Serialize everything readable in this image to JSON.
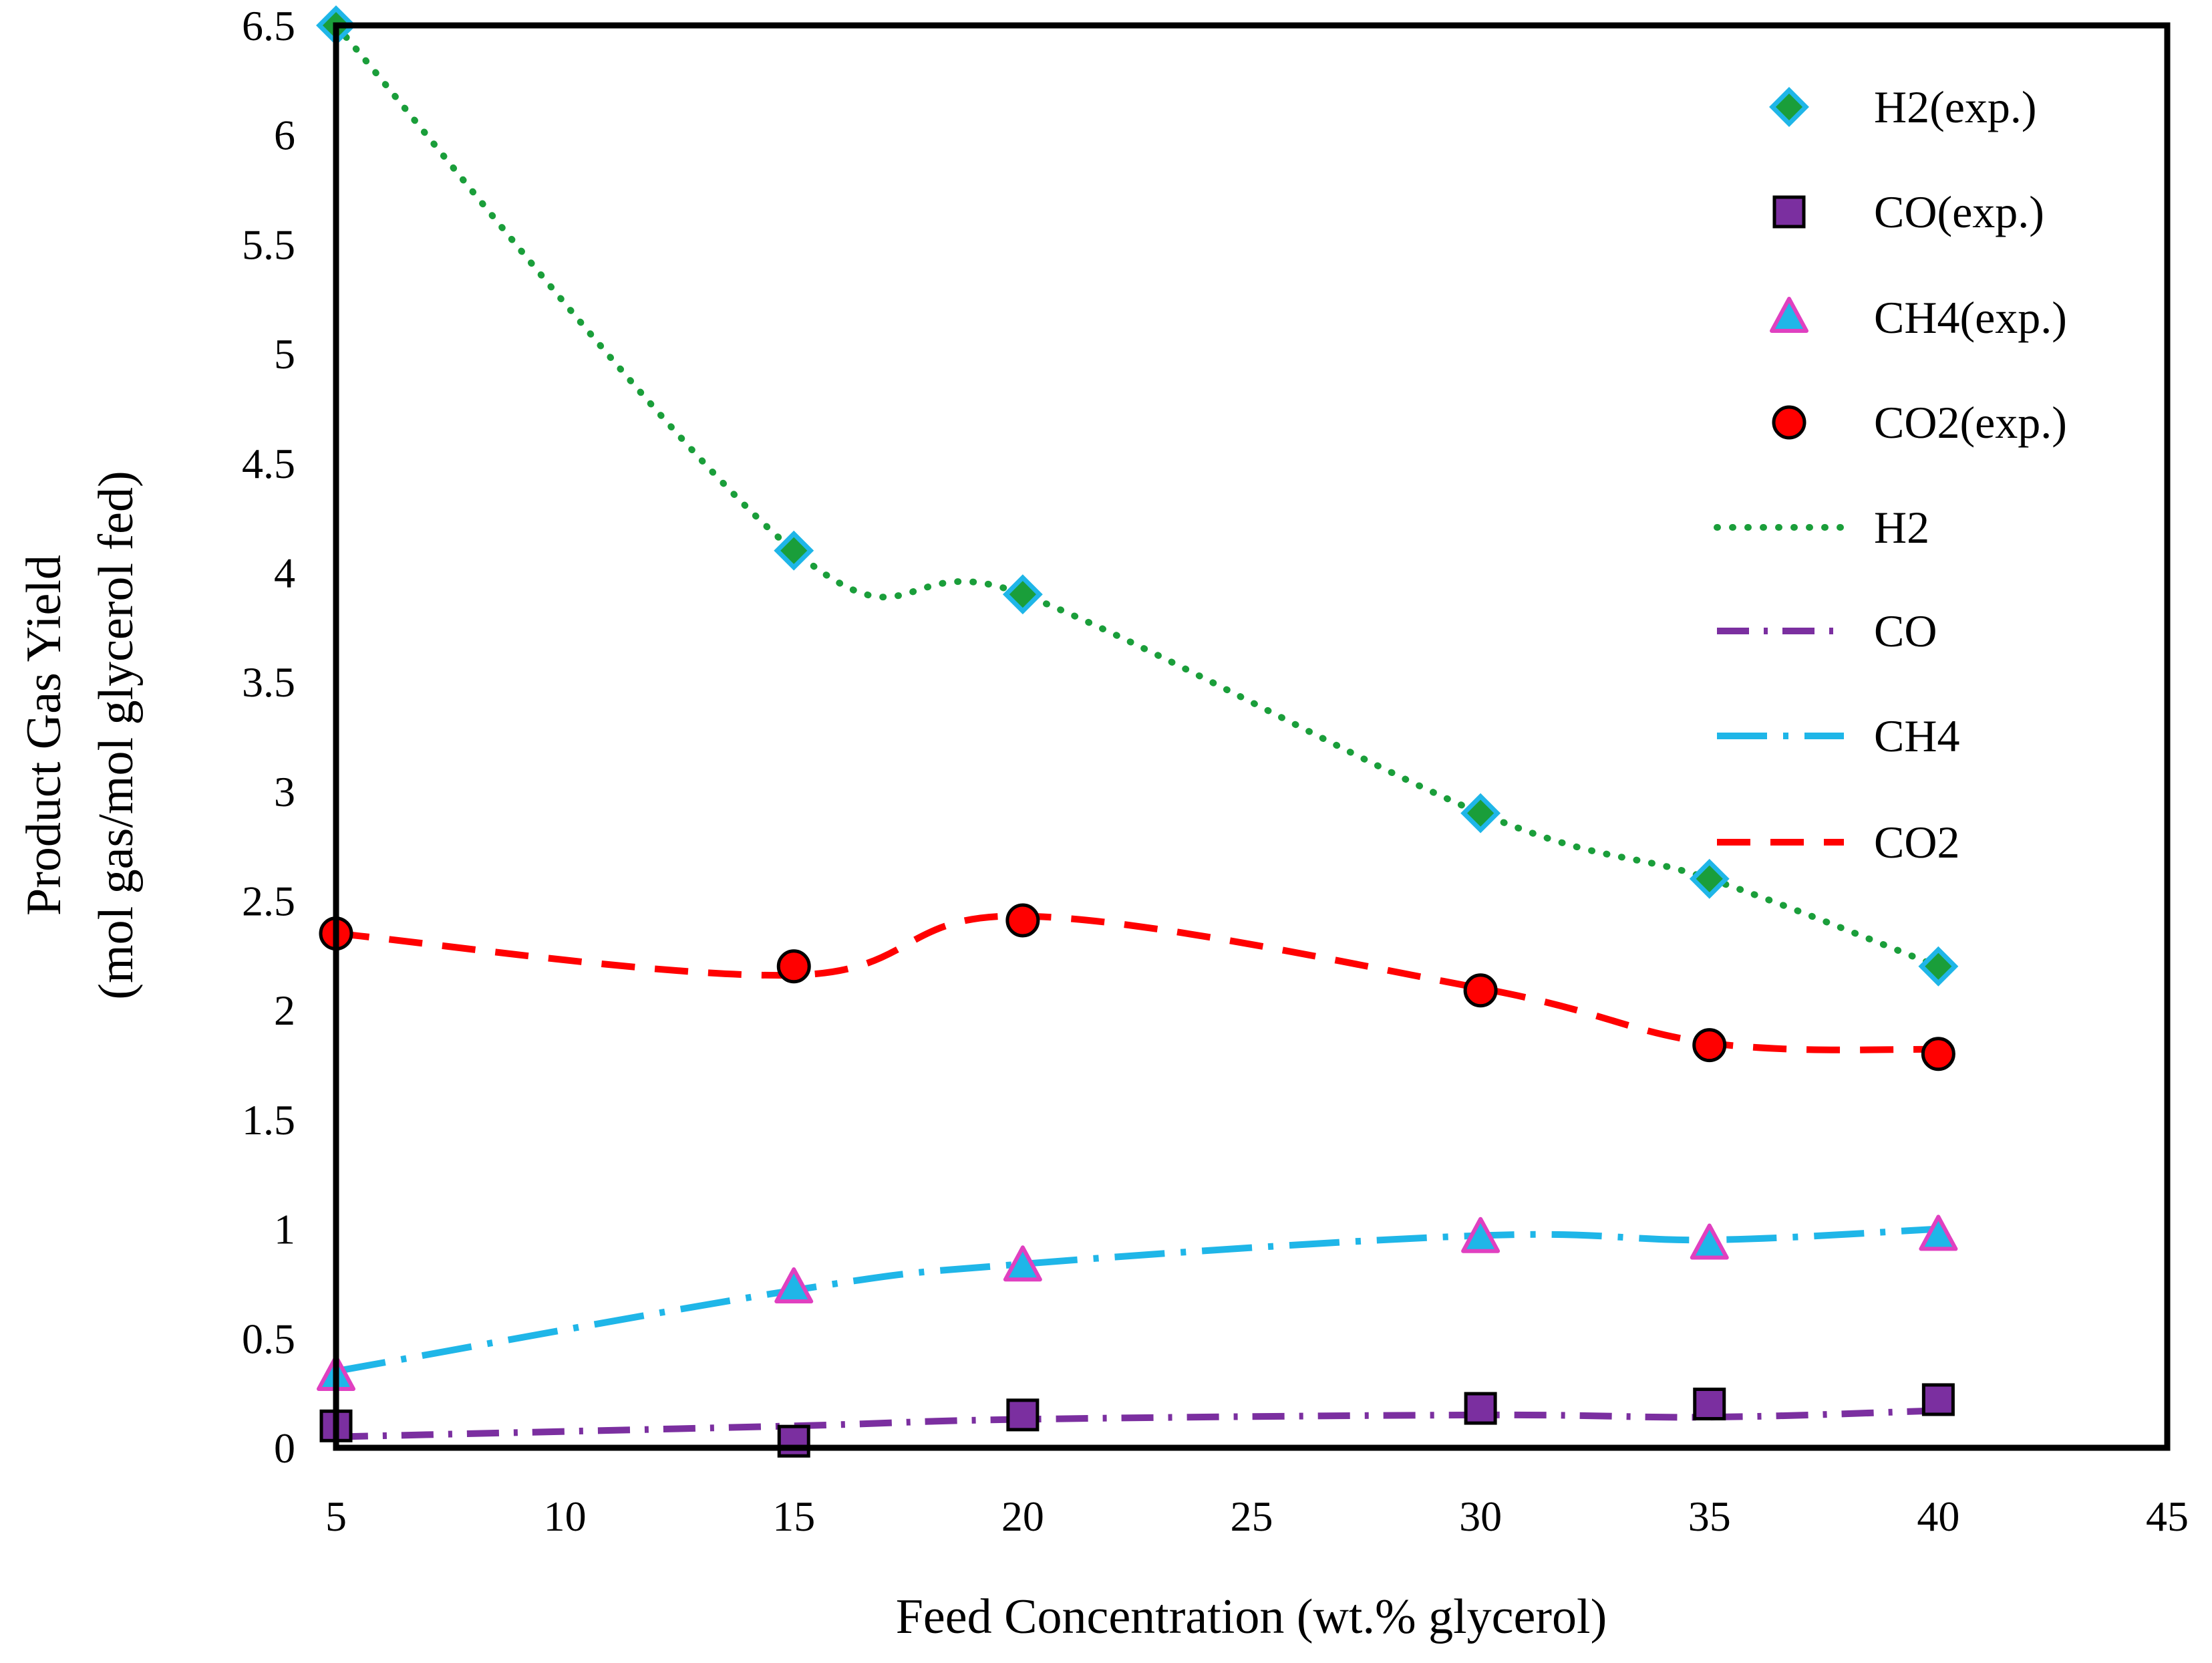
{
  "chart_data": {
    "type": "scatter",
    "title": "",
    "xlabel": "Feed Concentration (wt.% glycerol)",
    "ylabel_line1": "Product Gas Yield",
    "ylabel_line2": "(mol gas/mol glycerol fed)",
    "xlim": [
      5,
      45
    ],
    "ylim": [
      0,
      6.5
    ],
    "x_ticks": [
      5,
      10,
      15,
      20,
      25,
      30,
      35,
      40,
      45
    ],
    "y_ticks": [
      0,
      0.5,
      1,
      1.5,
      2,
      2.5,
      3,
      3.5,
      4,
      4.5,
      5,
      5.5,
      6,
      6.5
    ],
    "x_tick_labels": [
      "5",
      "10",
      "15",
      "20",
      "25",
      "30",
      "35",
      "40",
      "45"
    ],
    "y_tick_labels": [
      "0",
      "0.5",
      "1",
      "1.5",
      "2",
      "2.5",
      "3",
      "3.5",
      "4",
      "4.5",
      "5",
      "5.5",
      "6",
      "6.5"
    ],
    "grid": false,
    "legend_position": "top-right",
    "x": [
      5,
      15,
      20,
      30,
      35,
      40
    ],
    "series": [
      {
        "name": "H2(exp.)",
        "kind": "marker",
        "marker": "diamond",
        "fill": "#1a9e3a",
        "stroke": "#1fb6e8",
        "values": [
          6.5,
          4.1,
          3.9,
          2.9,
          2.6,
          2.2
        ]
      },
      {
        "name": "CO(exp.)",
        "kind": "marker",
        "marker": "square",
        "fill": "#7b2fa0",
        "stroke": "#000000",
        "values": [
          0.1,
          0.03,
          0.15,
          0.18,
          0.2,
          0.22
        ]
      },
      {
        "name": "CH4(exp.)",
        "kind": "marker",
        "marker": "triangle",
        "fill": "#1fb6e8",
        "stroke": "#e040c0",
        "values": [
          0.33,
          0.73,
          0.83,
          0.96,
          0.93,
          0.97
        ]
      },
      {
        "name": "CO2(exp.)",
        "kind": "marker",
        "marker": "circle",
        "fill": "#ff0000",
        "stroke": "#000000",
        "values": [
          2.35,
          2.2,
          2.41,
          2.09,
          1.84,
          1.8
        ]
      },
      {
        "name": "H2",
        "kind": "line",
        "dash": "dot",
        "color": "#1a9e3a",
        "values": [
          6.5,
          4.1,
          3.9,
          2.9,
          2.6,
          2.2
        ]
      },
      {
        "name": "CO",
        "kind": "line",
        "dash": "dashdot",
        "color": "#7b2fa0",
        "values": [
          0.05,
          0.1,
          0.13,
          0.15,
          0.14,
          0.17
        ]
      },
      {
        "name": "CH4",
        "kind": "line",
        "dash": "longdashdot",
        "color": "#1fb6e8",
        "values": [
          0.35,
          0.72,
          0.84,
          0.97,
          0.95,
          1.0
        ]
      },
      {
        "name": "CO2",
        "kind": "line",
        "dash": "dash",
        "color": "#ff0000",
        "values": [
          2.35,
          2.16,
          2.43,
          2.1,
          1.85,
          1.82
        ]
      }
    ]
  }
}
